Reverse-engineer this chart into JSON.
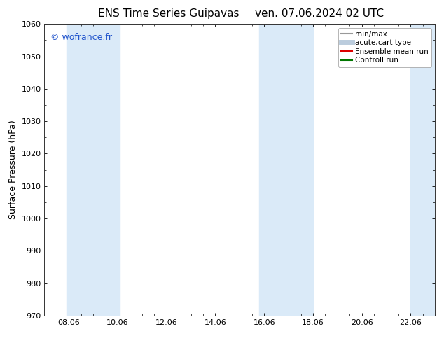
{
  "title_left": "ENS Time Series Guipavas",
  "title_right": "ven. 07.06.2024 02 UTC",
  "ylabel": "Surface Pressure (hPa)",
  "ylim": [
    970,
    1060
  ],
  "yticks": [
    970,
    980,
    990,
    1000,
    1010,
    1020,
    1030,
    1040,
    1050,
    1060
  ],
  "xlim": [
    0,
    16
  ],
  "xtick_positions": [
    1,
    3,
    5,
    7,
    9,
    11,
    13,
    15
  ],
  "xtick_labels": [
    "08.06",
    "10.06",
    "12.06",
    "14.06",
    "16.06",
    "18.06",
    "20.06",
    "22.06"
  ],
  "watermark": "© wofrance.fr",
  "watermark_color": "#2255cc",
  "shaded_bands": [
    {
      "x_start": 0.9,
      "x_end": 3.1,
      "color": "#daeaf8"
    },
    {
      "x_start": 8.8,
      "x_end": 11.0,
      "color": "#daeaf8"
    },
    {
      "x_start": 15.0,
      "x_end": 16.0,
      "color": "#daeaf8"
    }
  ],
  "legend_items": [
    {
      "label": "min/max",
      "color": "#999999",
      "lw": 1.5,
      "linestyle": "-"
    },
    {
      "label": "acute;cart type",
      "color": "#bbccdd",
      "lw": 5,
      "linestyle": "-"
    },
    {
      "label": "Ensemble mean run",
      "color": "#dd0000",
      "lw": 1.5,
      "linestyle": "-"
    },
    {
      "label": "Controll run",
      "color": "#007700",
      "lw": 1.5,
      "linestyle": "-"
    }
  ],
  "background_color": "#ffffff",
  "plot_bg_color": "#ffffff",
  "title_fontsize": 11,
  "tick_fontsize": 8,
  "ylabel_fontsize": 9,
  "legend_fontsize": 7.5
}
